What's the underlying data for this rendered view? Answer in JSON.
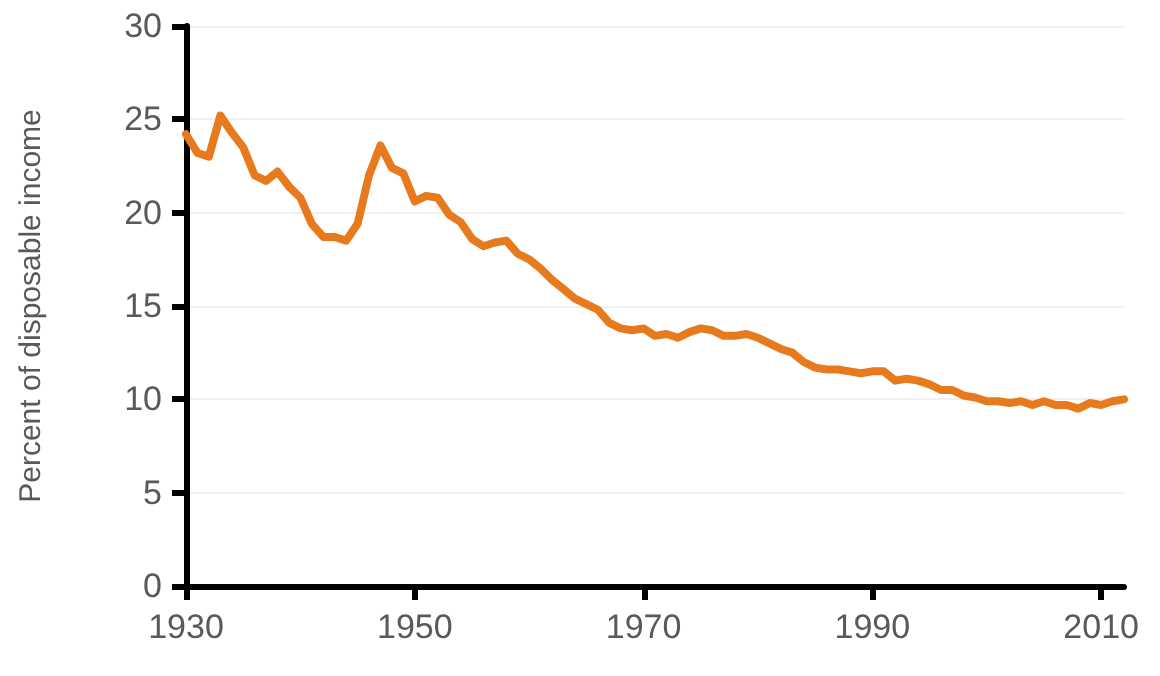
{
  "chart_data": {
    "type": "line",
    "ylabel": "Percent of disposable income",
    "x": [
      1930,
      1931,
      1932,
      1933,
      1934,
      1935,
      1936,
      1937,
      1938,
      1939,
      1940,
      1941,
      1942,
      1943,
      1944,
      1945,
      1946,
      1947,
      1948,
      1949,
      1950,
      1951,
      1952,
      1953,
      1954,
      1955,
      1956,
      1957,
      1958,
      1959,
      1960,
      1961,
      1962,
      1963,
      1964,
      1965,
      1966,
      1967,
      1968,
      1969,
      1970,
      1971,
      1972,
      1973,
      1974,
      1975,
      1976,
      1977,
      1978,
      1979,
      1980,
      1981,
      1982,
      1983,
      1984,
      1985,
      1986,
      1987,
      1988,
      1989,
      1990,
      1991,
      1992,
      1993,
      1994,
      1995,
      1996,
      1997,
      1998,
      1999,
      2000,
      2001,
      2002,
      2003,
      2004,
      2005,
      2006,
      2007,
      2008,
      2009,
      2010,
      2011,
      2012
    ],
    "series": [
      {
        "color": "#e87a1e",
        "values": [
          24.2,
          23.2,
          23.0,
          25.2,
          24.3,
          23.5,
          22.0,
          21.7,
          22.2,
          21.4,
          20.8,
          19.4,
          18.7,
          18.7,
          18.5,
          19.4,
          22.0,
          23.6,
          22.4,
          22.1,
          20.6,
          20.9,
          20.8,
          19.9,
          19.5,
          18.6,
          18.2,
          18.4,
          18.5,
          17.8,
          17.5,
          17.0,
          16.4,
          15.9,
          15.4,
          15.1,
          14.8,
          14.1,
          13.8,
          13.7,
          13.8,
          13.4,
          13.5,
          13.3,
          13.6,
          13.8,
          13.7,
          13.4,
          13.4,
          13.5,
          13.3,
          13.0,
          12.7,
          12.5,
          12.0,
          11.7,
          11.6,
          11.6,
          11.5,
          11.4,
          11.5,
          11.5,
          11.0,
          11.1,
          11.0,
          10.8,
          10.5,
          10.5,
          10.2,
          10.1,
          9.9,
          9.9,
          9.8,
          9.9,
          9.7,
          9.9,
          9.7,
          9.7,
          9.5,
          9.8,
          9.7,
          9.9,
          10.0
        ]
      }
    ],
    "xlim": [
      1930,
      2012
    ],
    "xticks": [
      1930,
      1950,
      1970,
      1990,
      2010
    ],
    "ylim": [
      0,
      30
    ],
    "yticks": [
      0,
      5,
      10,
      15,
      20,
      25,
      30
    ],
    "grid": "y",
    "marker": "none",
    "line_style": "solid"
  }
}
